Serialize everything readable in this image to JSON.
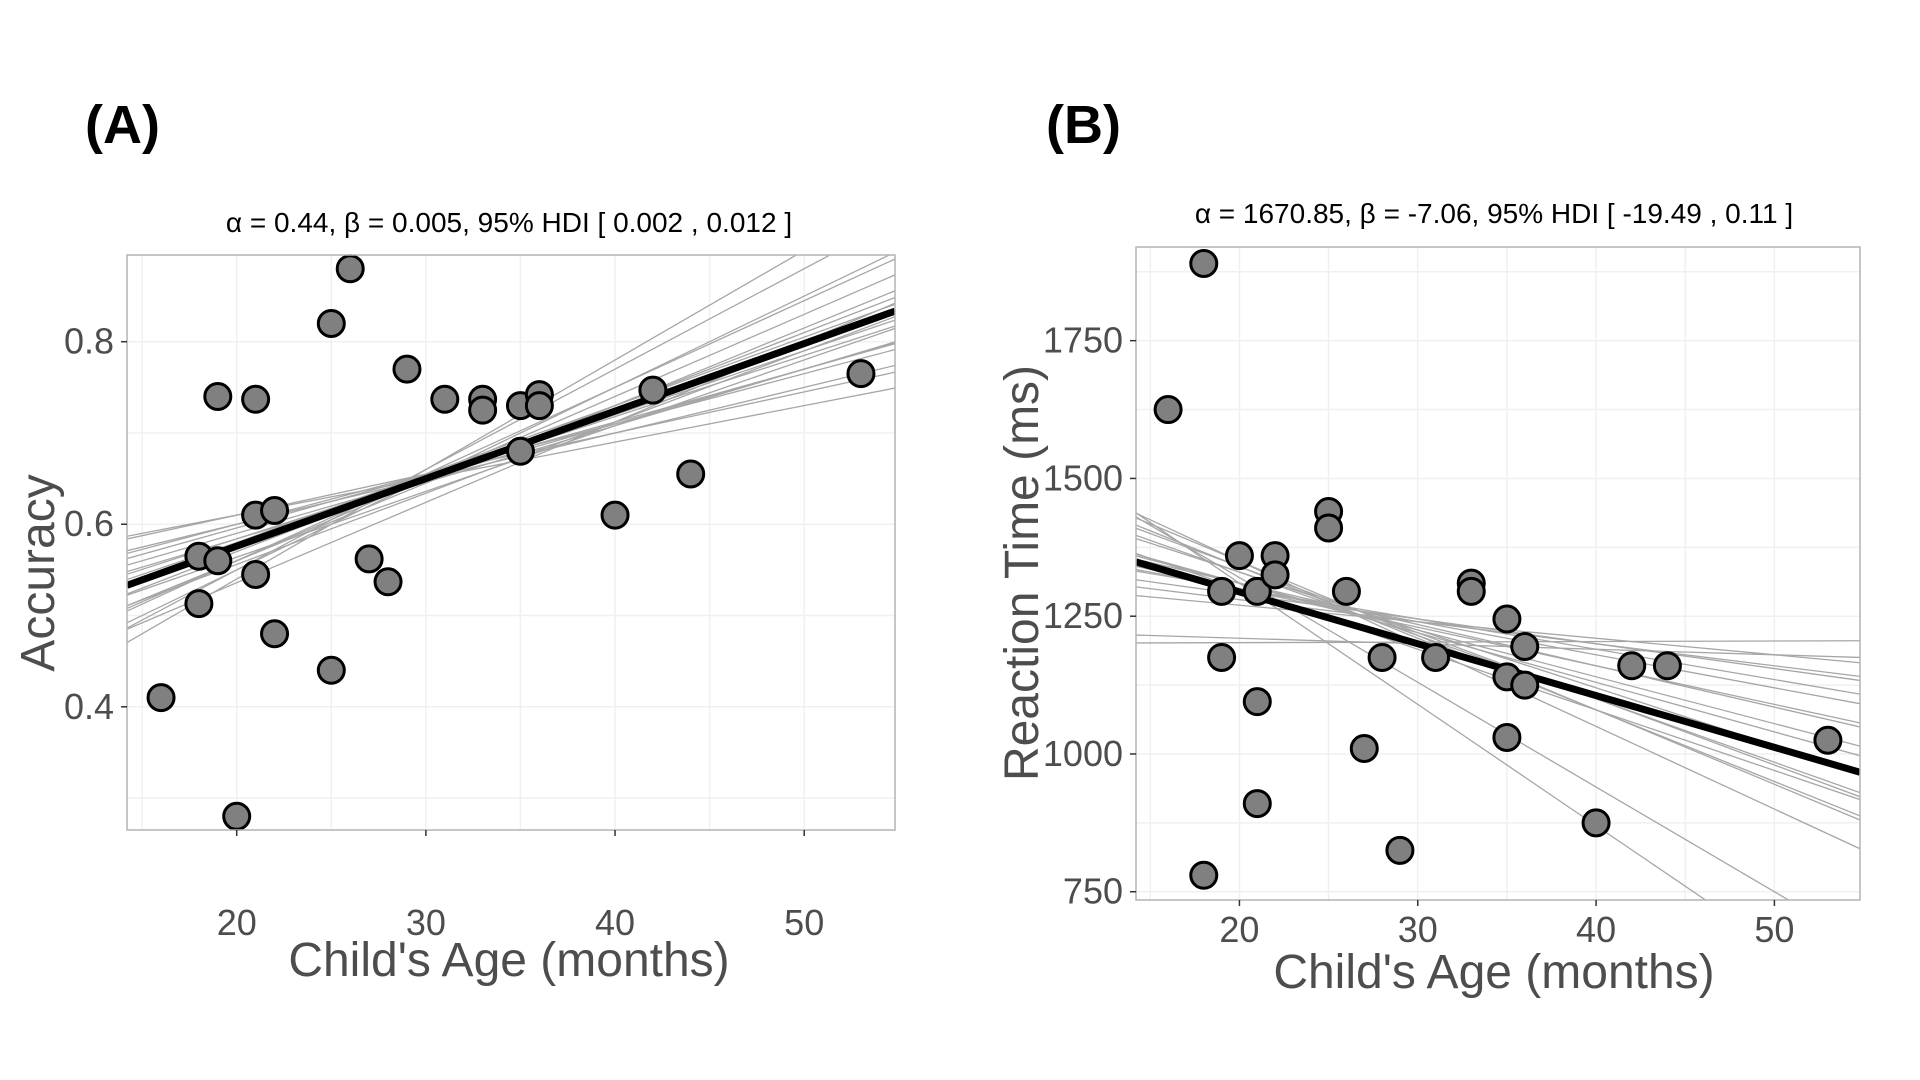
{
  "colors": {
    "point_fill": "#808080",
    "point_stroke": "#000000",
    "main_line": "#000000",
    "sample_line": "#a6a6a6",
    "panel_border": "#b3b3b3",
    "grid": "#f0f0f0",
    "text": "#4d4d4d"
  },
  "chart_data": [
    {
      "type": "scatter",
      "panel_label": "(A)",
      "subtitle": "α = 0.44, β = 0.005, 95% HDI [ 0.002 , 0.012 ]",
      "xlabel": "Child's Age (months)",
      "ylabel": "Accuracy",
      "xlim": [
        14.2,
        54.8
      ],
      "ylim": [
        0.265,
        0.895
      ],
      "xticks": [
        20,
        30,
        40,
        50
      ],
      "xtick_labels": [
        "20",
        "30",
        "40",
        "50"
      ],
      "yticks": [
        0.4,
        0.6,
        0.8
      ],
      "ytick_labels": [
        "0.4",
        "0.6",
        "0.8"
      ],
      "grid": true,
      "points": [
        {
          "x": 16,
          "y": 0.41
        },
        {
          "x": 18,
          "y": 0.565
        },
        {
          "x": 18,
          "y": 0.513
        },
        {
          "x": 19,
          "y": 0.56
        },
        {
          "x": 19,
          "y": 0.74
        },
        {
          "x": 20,
          "y": 0.28
        },
        {
          "x": 21,
          "y": 0.737
        },
        {
          "x": 21,
          "y": 0.61
        },
        {
          "x": 21,
          "y": 0.545
        },
        {
          "x": 22,
          "y": 0.615
        },
        {
          "x": 22,
          "y": 0.48
        },
        {
          "x": 25,
          "y": 0.82
        },
        {
          "x": 25,
          "y": 0.44
        },
        {
          "x": 26,
          "y": 0.88
        },
        {
          "x": 27,
          "y": 0.562
        },
        {
          "x": 28,
          "y": 0.537
        },
        {
          "x": 29,
          "y": 0.77
        },
        {
          "x": 31,
          "y": 0.737
        },
        {
          "x": 33,
          "y": 0.737
        },
        {
          "x": 33,
          "y": 0.725
        },
        {
          "x": 35,
          "y": 0.73
        },
        {
          "x": 35,
          "y": 0.68
        },
        {
          "x": 36,
          "y": 0.742
        },
        {
          "x": 36,
          "y": 0.73
        },
        {
          "x": 40,
          "y": 0.61
        },
        {
          "x": 42,
          "y": 0.747
        },
        {
          "x": 44,
          "y": 0.655
        },
        {
          "x": 53,
          "y": 0.765
        }
      ],
      "fit_line": {
        "intercept": 0.428,
        "slope": 0.0074
      },
      "posterior_lines": [
        {
          "intercept": 0.53,
          "slope": 0.004
        },
        {
          "intercept": 0.5,
          "slope": 0.005
        },
        {
          "intercept": 0.47,
          "slope": 0.006
        },
        {
          "intercept": 0.44,
          "slope": 0.007
        },
        {
          "intercept": 0.41,
          "slope": 0.008
        },
        {
          "intercept": 0.38,
          "slope": 0.009
        },
        {
          "intercept": 0.35,
          "slope": 0.01
        },
        {
          "intercept": 0.33,
          "slope": 0.011
        },
        {
          "intercept": 0.3,
          "slope": 0.012
        },
        {
          "intercept": 0.48,
          "slope": 0.0058
        },
        {
          "intercept": 0.45,
          "slope": 0.0067
        },
        {
          "intercept": 0.4,
          "slope": 0.0078
        },
        {
          "intercept": 0.36,
          "slope": 0.0088
        },
        {
          "intercept": 0.52,
          "slope": 0.0045
        },
        {
          "intercept": 0.42,
          "slope": 0.0072
        },
        {
          "intercept": 0.39,
          "slope": 0.0085
        },
        {
          "intercept": 0.46,
          "slope": 0.0062
        },
        {
          "intercept": 0.43,
          "slope": 0.0075
        },
        {
          "intercept": 0.37,
          "slope": 0.0095
        },
        {
          "intercept": 0.49,
          "slope": 0.0055
        }
      ]
    },
    {
      "type": "scatter",
      "panel_label": "(B)",
      "subtitle": "α = 1670.85, β = -7.06, 95% HDI [ -19.49 , 0.11 ]",
      "xlabel": "Child's Age (months)",
      "ylabel": "Reaction Time (ms)",
      "xlim": [
        14.2,
        54.8
      ],
      "ylim": [
        735,
        1920
      ],
      "xticks": [
        20,
        30,
        40,
        50
      ],
      "xtick_labels": [
        "20",
        "30",
        "40",
        "50"
      ],
      "yticks": [
        750,
        1000,
        1250,
        1500,
        1750
      ],
      "ytick_labels": [
        "750",
        "1000",
        "1250",
        "1500",
        "1750"
      ],
      "grid": true,
      "points": [
        {
          "x": 16,
          "y": 1625
        },
        {
          "x": 18,
          "y": 1890
        },
        {
          "x": 18,
          "y": 780
        },
        {
          "x": 19,
          "y": 1295
        },
        {
          "x": 19,
          "y": 1175
        },
        {
          "x": 20,
          "y": 1360
        },
        {
          "x": 21,
          "y": 1295
        },
        {
          "x": 21,
          "y": 1095
        },
        {
          "x": 21,
          "y": 910
        },
        {
          "x": 22,
          "y": 1360
        },
        {
          "x": 22,
          "y": 1325
        },
        {
          "x": 25,
          "y": 1440
        },
        {
          "x": 25,
          "y": 1410
        },
        {
          "x": 26,
          "y": 1295
        },
        {
          "x": 27,
          "y": 1010
        },
        {
          "x": 28,
          "y": 1175
        },
        {
          "x": 29,
          "y": 825
        },
        {
          "x": 31,
          "y": 1175
        },
        {
          "x": 33,
          "y": 1310
        },
        {
          "x": 33,
          "y": 1295
        },
        {
          "x": 35,
          "y": 1245
        },
        {
          "x": 35,
          "y": 1140
        },
        {
          "x": 35,
          "y": 1030
        },
        {
          "x": 36,
          "y": 1195
        },
        {
          "x": 36,
          "y": 1125
        },
        {
          "x": 40,
          "y": 875
        },
        {
          "x": 42,
          "y": 1160
        },
        {
          "x": 44,
          "y": 1160
        },
        {
          "x": 53,
          "y": 1025
        }
      ],
      "fit_line": {
        "intercept": 1482,
        "slope": -9.4
      },
      "posterior_lines": [
        {
          "intercept": 1650,
          "slope": -15.0
        },
        {
          "intercept": 1620,
          "slope": -13.5
        },
        {
          "intercept": 1700,
          "slope": -19.0
        },
        {
          "intercept": 1580,
          "slope": -12.0
        },
        {
          "intercept": 1540,
          "slope": -10.5
        },
        {
          "intercept": 1490,
          "slope": -9.0
        },
        {
          "intercept": 1460,
          "slope": -7.5
        },
        {
          "intercept": 1420,
          "slope": -6.0
        },
        {
          "intercept": 1380,
          "slope": -4.5
        },
        {
          "intercept": 1330,
          "slope": -3.0
        },
        {
          "intercept": 1230,
          "slope": -1.0
        },
        {
          "intercept": 1200,
          "slope": 0.1
        },
        {
          "intercept": 1750,
          "slope": -22.0
        },
        {
          "intercept": 1600,
          "slope": -13.0
        },
        {
          "intercept": 1560,
          "slope": -11.5
        },
        {
          "intercept": 1520,
          "slope": -11.0
        },
        {
          "intercept": 1480,
          "slope": -8.5
        },
        {
          "intercept": 1440,
          "slope": -7.0
        },
        {
          "intercept": 1410,
          "slope": -5.5
        },
        {
          "intercept": 1360,
          "slope": -4.0
        }
      ]
    }
  ]
}
